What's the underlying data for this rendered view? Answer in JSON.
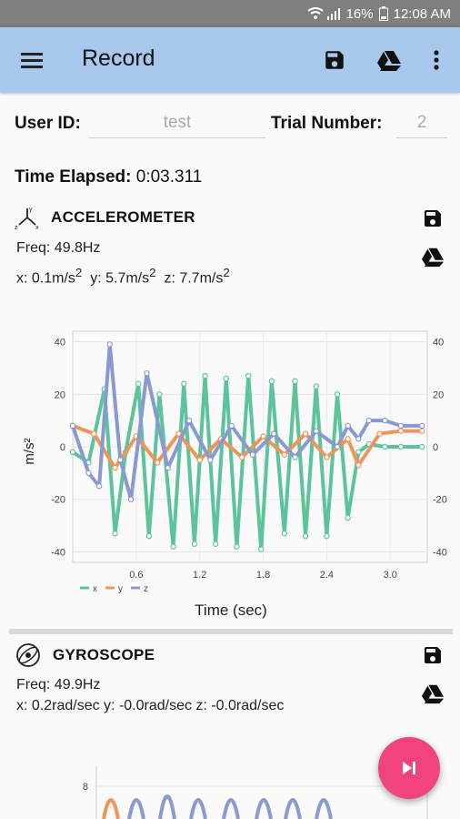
{
  "status": {
    "battery": "16%",
    "time": "12:08 AM"
  },
  "app_bar": {
    "title": "Record"
  },
  "form": {
    "user_id_label": "User ID:",
    "user_id_value": "test",
    "trial_label": "Trial Number:",
    "trial_value": "2"
  },
  "elapsed": {
    "label": "Time Elapsed:",
    "value": "0:03.311"
  },
  "accelerometer": {
    "name": "ACCELEROMETER",
    "freq": "Freq: 49.8Hz",
    "x": "x: 0.1m/s",
    "y": "y: 5.7m/s",
    "z": "z: 7.7m/s",
    "unit_power": "2"
  },
  "gyroscope": {
    "name": "GYROSCOPE",
    "freq": "Freq: 49.9Hz",
    "readings": "x: 0.2rad/sec  y: -0.0rad/sec  z: -0.0rad/sec"
  },
  "colors": {
    "x": "#5cc49a",
    "y": "#f0955a",
    "z": "#8a9ad0",
    "app_bar": "#a8c8ee",
    "fab": "#f0447a"
  },
  "chart_data": [
    {
      "type": "line",
      "xlabel": "Time (sec)",
      "ylabel": "m/s²",
      "xlim": [
        0,
        3.35
      ],
      "ylim": [
        -44,
        44
      ],
      "x_ticks": [
        "0.6",
        "1.2",
        "1.8",
        "2.4",
        "3.0"
      ],
      "y_ticks": [
        "40",
        "20",
        "0",
        "-20",
        "-40"
      ],
      "legend": [
        "x",
        "y",
        "z"
      ],
      "legend_position": "bottom-left",
      "series": [
        {
          "name": "x",
          "x": [
            0.0,
            0.15,
            0.3,
            0.4,
            0.5,
            0.62,
            0.72,
            0.82,
            0.95,
            1.05,
            1.15,
            1.25,
            1.35,
            1.45,
            1.55,
            1.66,
            1.78,
            1.88,
            2.0,
            2.1,
            2.2,
            2.3,
            2.4,
            2.5,
            2.6,
            2.7,
            2.8,
            2.95,
            3.1,
            3.3
          ],
          "values": [
            -2,
            -6,
            22,
            -33,
            -2,
            24,
            -34,
            20,
            -38,
            24,
            -37,
            27,
            -37,
            26,
            -38,
            27,
            -39,
            25,
            -33,
            25,
            -34,
            23,
            -34,
            20,
            -27,
            -2,
            1,
            0,
            0,
            0
          ]
        },
        {
          "name": "y",
          "x": [
            0.0,
            0.2,
            0.4,
            0.6,
            0.8,
            1.0,
            1.2,
            1.4,
            1.6,
            1.8,
            2.0,
            2.2,
            2.4,
            2.6,
            2.7,
            2.9,
            3.1,
            3.3
          ],
          "values": [
            8,
            5,
            -8,
            4,
            -6,
            5,
            -5,
            3,
            -4,
            4,
            -3,
            5,
            -4,
            3,
            -7,
            5,
            6,
            6
          ]
        },
        {
          "name": "z",
          "x": [
            0.0,
            0.15,
            0.25,
            0.35,
            0.45,
            0.55,
            0.7,
            0.9,
            1.1,
            1.3,
            1.5,
            1.7,
            1.9,
            2.1,
            2.3,
            2.5,
            2.6,
            2.7,
            2.8,
            2.95,
            3.1,
            3.3
          ],
          "values": [
            8,
            -10,
            -15,
            39,
            -5,
            -20,
            28,
            -8,
            10,
            -5,
            8,
            -3,
            5,
            -4,
            6,
            0,
            8,
            3,
            10,
            10,
            8,
            8
          ]
        }
      ]
    },
    {
      "type": "line",
      "ylabel": "",
      "y_ticks": [
        "8"
      ],
      "series": [
        {
          "name": "x",
          "values": []
        },
        {
          "name": "y",
          "values": []
        },
        {
          "name": "z",
          "values": []
        }
      ]
    }
  ]
}
